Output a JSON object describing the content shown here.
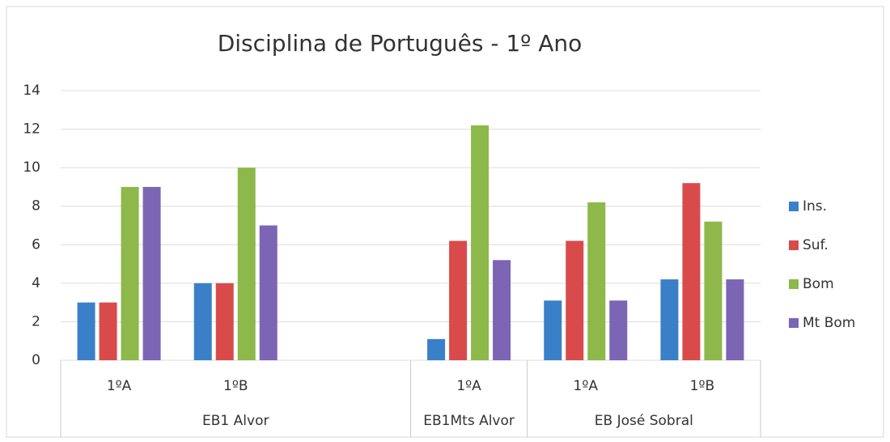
{
  "chart_data": {
    "type": "bar",
    "title": "Disciplina de Português - 1º Ano",
    "groups": [
      {
        "name": "EB1 Alvor",
        "categories": [
          "1ºA",
          "1ºB",
          null
        ]
      },
      {
        "name": "EB1Mts Alvor",
        "categories": [
          "1ºA"
        ]
      },
      {
        "name": "EB José Sobral",
        "categories": [
          "1ºA",
          "1ºB"
        ]
      }
    ],
    "series": [
      {
        "name": "Ins.",
        "color": "#3a80c8",
        "values": [
          3,
          4,
          null,
          1.1,
          3.1,
          4.2
        ]
      },
      {
        "name": "Suf.",
        "color": "#d94b4b",
        "values": [
          3,
          4,
          null,
          6.2,
          6.2,
          9.2
        ]
      },
      {
        "name": "Bom",
        "color": "#8db84a",
        "values": [
          9,
          10,
          null,
          12.2,
          8.2,
          7.2
        ]
      },
      {
        "name": "Mt Bom",
        "color": "#7b65b4",
        "values": [
          9,
          7,
          null,
          5.2,
          3.1,
          4.2
        ]
      }
    ],
    "ylim": [
      0,
      14
    ],
    "yticks": [
      0,
      2,
      4,
      6,
      8,
      10,
      12,
      14
    ],
    "grid": true,
    "legend": "right"
  }
}
